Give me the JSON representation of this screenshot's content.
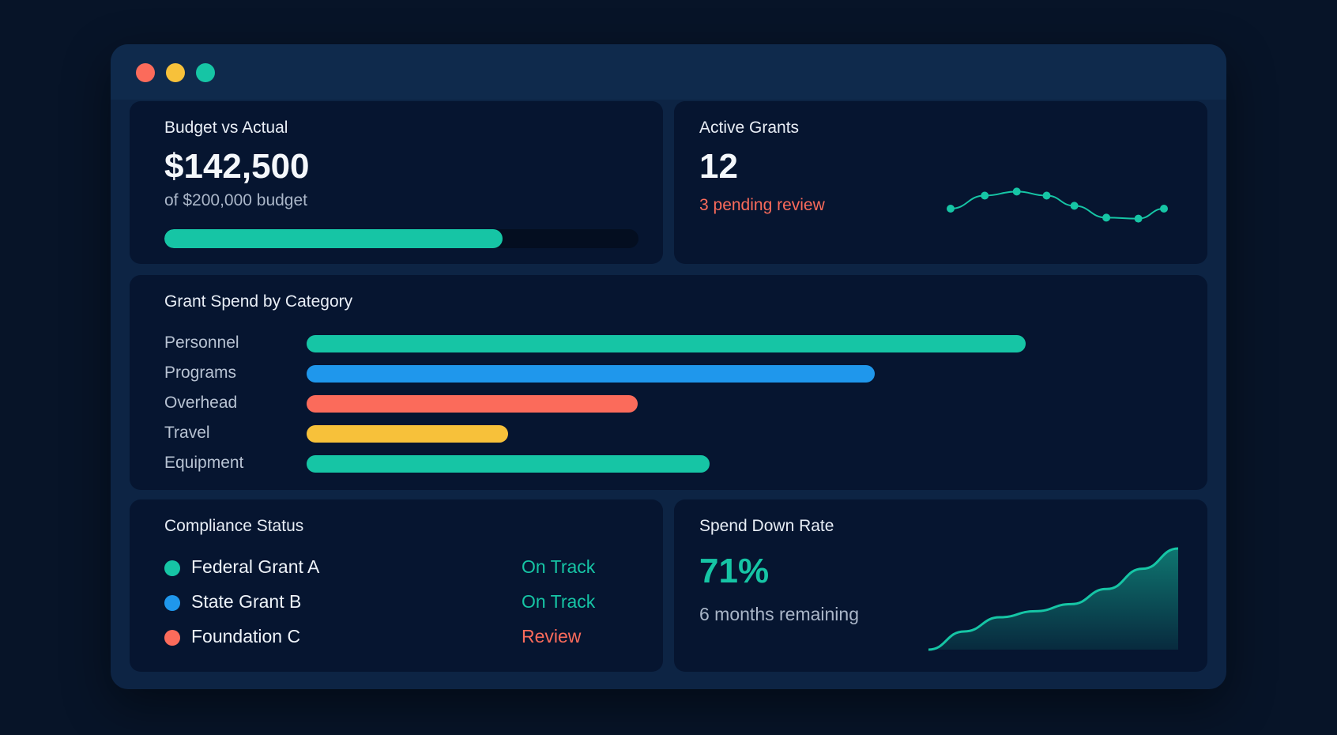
{
  "colors": {
    "teal": "#16c5a5",
    "blue": "#1f97ec",
    "coral": "#fb6b5b",
    "yellow": "#f7c13a"
  },
  "budget": {
    "title": "Budget vs Actual",
    "amount": "$142,500",
    "subtitle": "of $200,000 budget",
    "progress_fraction": 0.7125
  },
  "grants": {
    "title": "Active Grants",
    "count": "12",
    "pending": "3 pending review",
    "sparkline": [
      0.0,
      0.55,
      0.72,
      0.55,
      0.12,
      -0.38,
      -0.42,
      0.0
    ]
  },
  "category": {
    "title": "Grant Spend by Category",
    "items": [
      {
        "label": "Personnel",
        "value": 100,
        "color": "#16c5a5"
      },
      {
        "label": "Programs",
        "value": 79,
        "color": "#1f97ec"
      },
      {
        "label": "Overhead",
        "value": 46,
        "color": "#fb6b5b"
      },
      {
        "label": "Travel",
        "value": 28,
        "color": "#f7c13a"
      },
      {
        "label": "Equipment",
        "value": 56,
        "color": "#16c5a5"
      }
    ]
  },
  "compliance": {
    "title": "Compliance Status",
    "items": [
      {
        "name": "Federal Grant A",
        "status": "On Track",
        "dot": "#16c5a5",
        "status_color": "#16c5a5"
      },
      {
        "name": "State Grant B",
        "status": "On Track",
        "dot": "#1f97ec",
        "status_color": "#16c5a5"
      },
      {
        "name": "Foundation C",
        "status": "Review",
        "dot": "#fb6b5b",
        "status_color": "#fb6b5b"
      }
    ]
  },
  "spend": {
    "title": "Spend Down Rate",
    "percent": "71%",
    "remaining": "6 months remaining",
    "curve": [
      0.0,
      0.18,
      0.32,
      0.38,
      0.45,
      0.6,
      0.8,
      1.0
    ]
  }
}
